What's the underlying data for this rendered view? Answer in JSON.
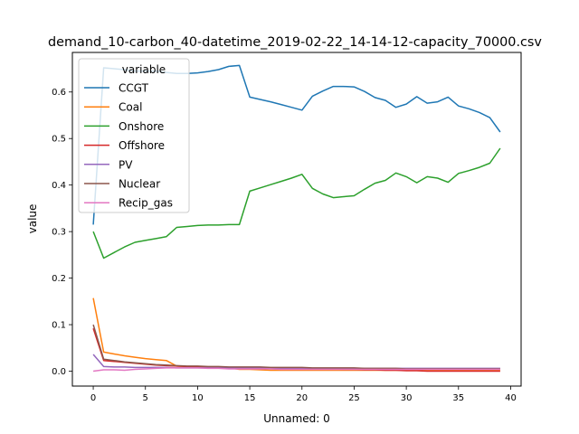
{
  "chart_data": {
    "type": "line",
    "title": "demand_10-carbon_40-datetime_2019-02-22_14-14-12-capacity_70000.csv",
    "xlabel": "Unnamed: 0",
    "ylabel": "value",
    "xlim": [
      -2,
      41
    ],
    "ylim": [
      -0.032,
      0.685
    ],
    "xticks": [
      0,
      5,
      10,
      15,
      20,
      25,
      30,
      35,
      40
    ],
    "yticks": [
      0.0,
      0.1,
      0.2,
      0.3,
      0.4,
      0.5,
      0.6
    ],
    "grid": false,
    "legend": {
      "title": "variable",
      "placement": "upper-left"
    },
    "x": [
      0,
      1,
      2,
      3,
      4,
      5,
      6,
      7,
      8,
      9,
      10,
      11,
      12,
      13,
      14,
      15,
      16,
      17,
      18,
      19,
      20,
      21,
      22,
      23,
      24,
      25,
      26,
      27,
      28,
      29,
      30,
      31,
      32,
      33,
      34,
      35,
      36,
      37,
      38,
      39
    ],
    "series": [
      {
        "name": "CCGT",
        "color": "#1f77b4",
        "values": [
          0.315,
          0.652,
          0.65,
          0.648,
          0.645,
          0.645,
          0.645,
          0.642,
          0.64,
          0.64,
          0.641,
          0.644,
          0.648,
          0.655,
          0.657,
          0.589,
          0.584,
          0.579,
          0.573,
          0.567,
          0.561,
          0.591,
          0.602,
          0.612,
          0.612,
          0.611,
          0.601,
          0.588,
          0.582,
          0.567,
          0.574,
          0.59,
          0.576,
          0.579,
          0.589,
          0.57,
          0.564,
          0.556,
          0.545,
          0.514
        ]
      },
      {
        "name": "Coal",
        "color": "#ff7f0e",
        "values": [
          0.157,
          0.041,
          0.037,
          0.033,
          0.03,
          0.027,
          0.025,
          0.023,
          0.011,
          0.01,
          0.009,
          0.008,
          0.007,
          0.007,
          0.004,
          0.004,
          0.003,
          0.002,
          0.002,
          0.002,
          0.002,
          0.002,
          0.002,
          0.002,
          0.002,
          0.002,
          0.002,
          0.002,
          0.002,
          0.002,
          0.002,
          0.002,
          0.002,
          0.002,
          0.002,
          0.002,
          0.002,
          0.002,
          0.002,
          0.002
        ]
      },
      {
        "name": "Onshore",
        "color": "#2ca02c",
        "values": [
          0.3,
          0.243,
          0.255,
          0.267,
          0.277,
          0.281,
          0.285,
          0.289,
          0.309,
          0.311,
          0.313,
          0.314,
          0.314,
          0.315,
          0.315,
          0.387,
          0.394,
          0.401,
          0.408,
          0.415,
          0.423,
          0.393,
          0.381,
          0.373,
          0.375,
          0.377,
          0.391,
          0.404,
          0.41,
          0.426,
          0.418,
          0.405,
          0.418,
          0.415,
          0.406,
          0.425,
          0.431,
          0.438,
          0.447,
          0.479
        ]
      },
      {
        "name": "Offshore",
        "color": "#d62728",
        "values": [
          0.092,
          0.023,
          0.021,
          0.019,
          0.017,
          0.015,
          0.013,
          0.012,
          0.011,
          0.01,
          0.009,
          0.009,
          0.008,
          0.008,
          0.008,
          0.008,
          0.007,
          0.007,
          0.007,
          0.006,
          0.006,
          0.006,
          0.005,
          0.005,
          0.004,
          0.004,
          0.003,
          0.003,
          0.002,
          0.002,
          0.001,
          0.001,
          0.0,
          0.0,
          0.0,
          0.0,
          0.0,
          0.0,
          0.0,
          0.0
        ]
      },
      {
        "name": "PV",
        "color": "#9467bd",
        "values": [
          0.036,
          0.01,
          0.009,
          0.009,
          0.008,
          0.008,
          0.008,
          0.008,
          0.007,
          0.007,
          0.007,
          0.007,
          0.007,
          0.007,
          0.007,
          0.007,
          0.007,
          0.007,
          0.006,
          0.006,
          0.006,
          0.006,
          0.006,
          0.006,
          0.006,
          0.006,
          0.006,
          0.006,
          0.006,
          0.006,
          0.006,
          0.006,
          0.006,
          0.006,
          0.006,
          0.006,
          0.006,
          0.006,
          0.006,
          0.006
        ]
      },
      {
        "name": "Nuclear",
        "color": "#8c564b",
        "values": [
          0.1,
          0.026,
          0.023,
          0.02,
          0.018,
          0.016,
          0.014,
          0.013,
          0.012,
          0.011,
          0.011,
          0.01,
          0.01,
          0.009,
          0.009,
          0.009,
          0.009,
          0.008,
          0.008,
          0.008,
          0.008,
          0.007,
          0.007,
          0.007,
          0.007,
          0.007,
          0.006,
          0.006,
          0.006,
          0.006,
          0.005,
          0.005,
          0.005,
          0.005,
          0.005,
          0.005,
          0.005,
          0.005,
          0.005,
          0.005
        ]
      },
      {
        "name": "Recip_gas",
        "color": "#e377c2",
        "values": [
          0.0,
          0.003,
          0.003,
          0.002,
          0.004,
          0.005,
          0.006,
          0.007,
          0.007,
          0.007,
          0.007,
          0.006,
          0.006,
          0.005,
          0.005,
          0.005,
          0.005,
          0.005,
          0.004,
          0.004,
          0.004,
          0.004,
          0.004,
          0.004,
          0.004,
          0.004,
          0.004,
          0.004,
          0.004,
          0.004,
          0.004,
          0.004,
          0.004,
          0.004,
          0.004,
          0.004,
          0.004,
          0.004,
          0.004,
          0.004
        ]
      }
    ]
  }
}
